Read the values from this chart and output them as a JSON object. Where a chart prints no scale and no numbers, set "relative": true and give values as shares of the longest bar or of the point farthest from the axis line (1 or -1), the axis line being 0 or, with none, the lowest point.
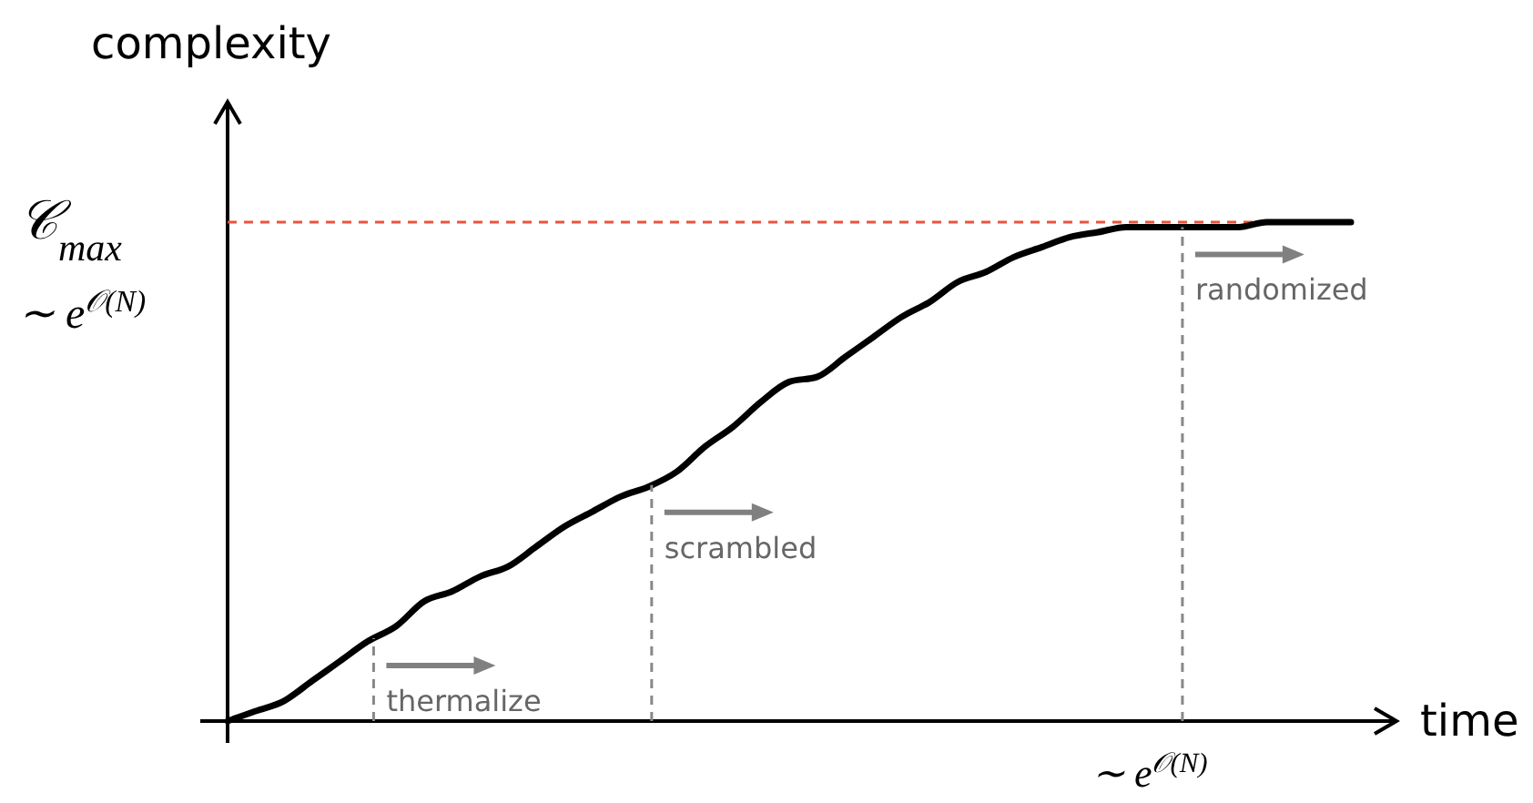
{
  "chart_data": {
    "type": "line",
    "relative": true,
    "xlabel": "time",
    "ylabel": "complexity",
    "categories": [
      null,
      null,
      null,
      null,
      null,
      null,
      null,
      null,
      null,
      null,
      null,
      null,
      null,
      null,
      null,
      null,
      null,
      null,
      null,
      null,
      null,
      null,
      null,
      null,
      null,
      null,
      null,
      null,
      null,
      null,
      null,
      null,
      null,
      null,
      null,
      null,
      null,
      null,
      null,
      null,
      null
    ],
    "series": [
      {
        "color": "#000000",
        "values": [
          0,
          0.02,
          0.04,
          0.08,
          0.12,
          0.16,
          0.19,
          0.24,
          0.26,
          0.29,
          0.31,
          0.35,
          0.39,
          0.42,
          0.45,
          0.47,
          0.5,
          0.55,
          0.59,
          0.64,
          0.68,
          0.69,
          0.73,
          0.77,
          0.81,
          0.84,
          0.88,
          0.9,
          0.93,
          0.95,
          0.97,
          0.98,
          0.99,
          0.99,
          0.99,
          0.99,
          0.99,
          1.0,
          1.0,
          1.0,
          1.0
        ]
      }
    ],
    "ref_lines": [
      {
        "axis": "y",
        "value": 1,
        "label": "𝒞$_{max}$",
        "color": "#e8553f",
        "line_style": "dashed"
      }
    ],
    "annotations": [
      "∼ e$^{𝒪(N)}$",
      "∼ e$^{𝒪(N)}$",
      "thermalize",
      "scrambled",
      "randomized"
    ]
  }
}
